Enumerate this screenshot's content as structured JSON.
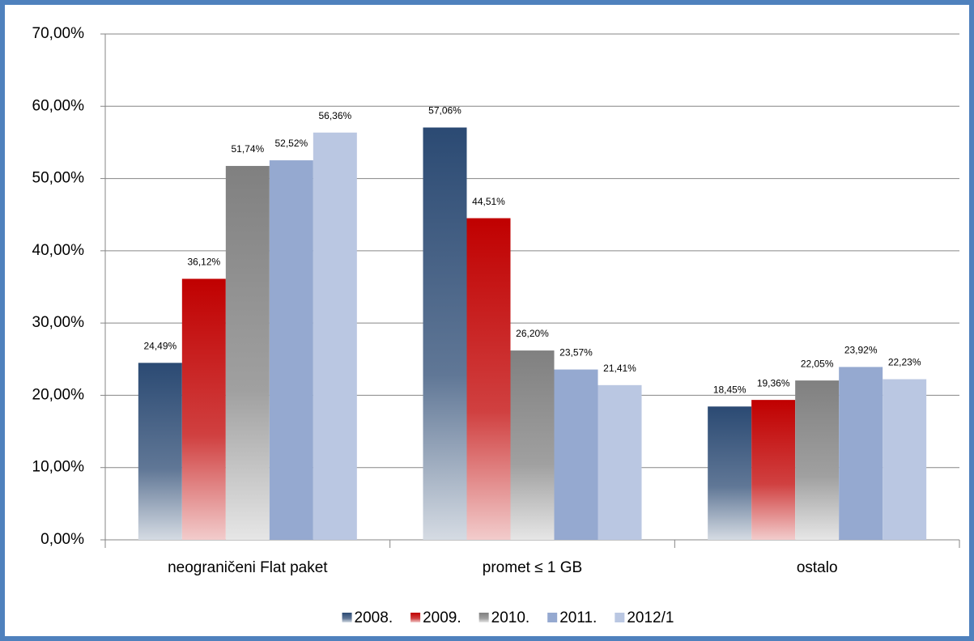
{
  "chart_data": {
    "type": "bar",
    "categories": [
      "neograničeni Flat paket",
      "promet ≤ 1 GB",
      "ostalo"
    ],
    "series": [
      {
        "name": "2008.",
        "color": "#2b4a73",
        "values": [
          24.49,
          57.06,
          18.45
        ],
        "value_labels": [
          "24,49%",
          "57,06%",
          "18,45%"
        ]
      },
      {
        "name": "2009.",
        "color": "#c00000",
        "values": [
          36.12,
          44.51,
          19.36
        ],
        "value_labels": [
          "36,12%",
          "44,51%",
          "19,36%"
        ]
      },
      {
        "name": "2010.",
        "color": "#808080",
        "values": [
          51.74,
          26.2,
          22.05
        ],
        "value_labels": [
          "51,74%",
          "26,20%",
          "22,05%"
        ]
      },
      {
        "name": "2011.",
        "color": "#95a9d0",
        "values": [
          52.52,
          23.57,
          23.92
        ],
        "value_labels": [
          "52,52%",
          "23,57%",
          "23,92%"
        ]
      },
      {
        "name": "2012/1",
        "color": "#bac7e2",
        "values": [
          56.36,
          21.41,
          22.23
        ],
        "value_labels": [
          "56,36%",
          "21,41%",
          "22,23%"
        ]
      }
    ],
    "ylim": [
      0,
      70
    ],
    "yticks": [
      {
        "value": 0,
        "label": "0,00%"
      },
      {
        "value": 10,
        "label": "10,00%"
      },
      {
        "value": 20,
        "label": "20,00%"
      },
      {
        "value": 30,
        "label": "30,00%"
      },
      {
        "value": 40,
        "label": "40,00%"
      },
      {
        "value": 50,
        "label": "50,00%"
      },
      {
        "value": 60,
        "label": "60,00%"
      },
      {
        "value": 70,
        "label": "70,00%"
      }
    ],
    "grid": true
  }
}
